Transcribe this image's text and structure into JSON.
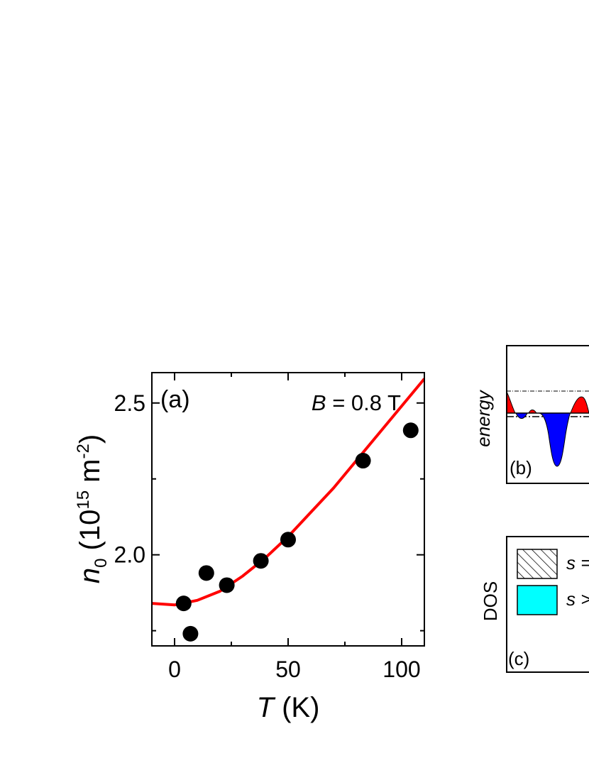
{
  "chart_data": {
    "type": "scatter",
    "panel_label": "(a)",
    "annotation": {
      "variable": "B",
      "rest": " = 0.8 T"
    },
    "xlabel": {
      "symbol": "T",
      "unit": " (K)"
    },
    "ylabel": {
      "symbol": "n",
      "subscript": "0",
      "unit_open": " (10",
      "exponent": "15",
      "unit_mid": " m",
      "unit_exp": "-2",
      "unit_close": ")"
    },
    "xlim": [
      -10,
      110
    ],
    "ylim": [
      1.7,
      2.6
    ],
    "x_ticks": [
      0,
      50,
      100
    ],
    "x_tick_labels": [
      "0",
      "50",
      "100"
    ],
    "y_ticks": [
      2.0,
      2.5
    ],
    "y_tick_labels": [
      "2.0",
      "2.5"
    ],
    "grid": false,
    "series": [
      {
        "kind": "points",
        "color": "#000000",
        "x": [
          4,
          7,
          14,
          23,
          38,
          50,
          83,
          104
        ],
        "y": [
          1.84,
          1.74,
          1.94,
          1.9,
          1.98,
          2.05,
          2.31,
          2.41
        ]
      },
      {
        "kind": "fit-line",
        "color": "#ff0000",
        "x": [
          -10,
          0,
          10,
          20,
          30,
          40,
          50,
          60,
          70,
          80,
          90,
          100,
          110
        ],
        "y": [
          1.84,
          1.835,
          1.85,
          1.88,
          1.93,
          1.99,
          2.06,
          2.14,
          2.22,
          2.31,
          2.4,
          2.49,
          2.58
        ]
      }
    ]
  },
  "panel_b": {
    "label": "(b)",
    "ylabel": "energy",
    "colors": {
      "up": "#ff0000",
      "down": "#0000ff"
    }
  },
  "panel_c": {
    "label": "(c)",
    "ylabel": "DOS",
    "legend": [
      {
        "text": "s = ",
        "fill": "hatch"
      },
      {
        "text": "s > ",
        "fill": "#00ffff"
      }
    ]
  }
}
